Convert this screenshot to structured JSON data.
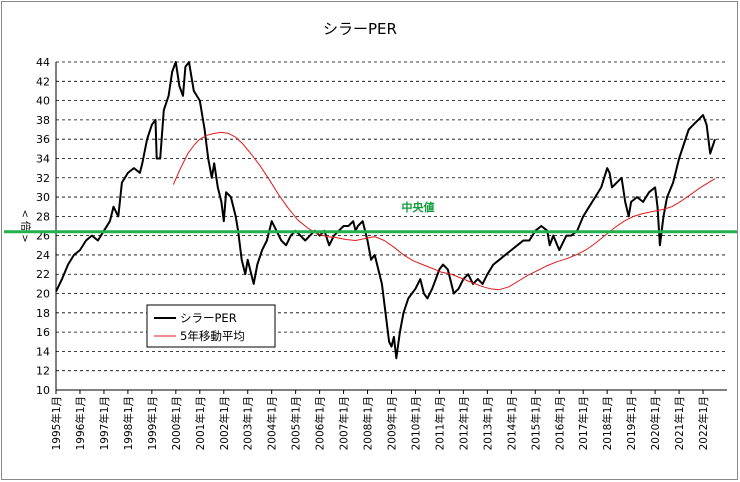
{
  "chart_data": {
    "type": "line",
    "title": "シラーPER",
    "ylabel": "< 倍 >",
    "xlabel": "",
    "ylim": [
      10,
      44
    ],
    "yticks": [
      10,
      12,
      14,
      16,
      18,
      20,
      22,
      24,
      26,
      28,
      30,
      32,
      34,
      36,
      38,
      40,
      42,
      44
    ],
    "x_tick_labels": [
      "1995年1月",
      "1996年1月",
      "1997年1月",
      "1998年1月",
      "1999年1月",
      "2000年1月",
      "2001年1月",
      "2002年1月",
      "2003年1月",
      "2004年1月",
      "2005年1月",
      "2006年1月",
      "2007年1月",
      "2008年1月",
      "2009年1月",
      "2010年1月",
      "2011年1月",
      "2012年1月",
      "2013年1月",
      "2014年1月",
      "2015年1月",
      "2016年1月",
      "2017年1月",
      "2018年1月",
      "2019年1月",
      "2020年1月",
      "2021年1月",
      "2022年1月"
    ],
    "xlim": [
      1995.0,
      2023.0
    ],
    "grid": true,
    "legend": "bottom-left",
    "series": [
      {
        "name": "シラーPER",
        "color": "#000000",
        "points": [
          [
            1995.0,
            20.2
          ],
          [
            1995.25,
            21.5
          ],
          [
            1995.5,
            23.0
          ],
          [
            1995.75,
            24.0
          ],
          [
            1996.0,
            24.5
          ],
          [
            1996.25,
            25.5
          ],
          [
            1996.5,
            26.0
          ],
          [
            1996.75,
            25.5
          ],
          [
            1997.0,
            26.5
          ],
          [
            1997.25,
            27.5
          ],
          [
            1997.4,
            29.0
          ],
          [
            1997.6,
            28.0
          ],
          [
            1997.75,
            31.5
          ],
          [
            1998.0,
            32.5
          ],
          [
            1998.25,
            33.0
          ],
          [
            1998.5,
            32.5
          ],
          [
            1998.6,
            33.5
          ],
          [
            1998.8,
            36.0
          ],
          [
            1999.0,
            37.5
          ],
          [
            1999.15,
            38.0
          ],
          [
            1999.2,
            34.0
          ],
          [
            1999.35,
            34.0
          ],
          [
            1999.5,
            39.0
          ],
          [
            1999.7,
            40.5
          ],
          [
            1999.85,
            43.0
          ],
          [
            2000.0,
            44.0
          ],
          [
            2000.15,
            41.5
          ],
          [
            2000.3,
            40.5
          ],
          [
            2000.4,
            43.5
          ],
          [
            2000.55,
            44.0
          ],
          [
            2000.75,
            41.0
          ],
          [
            2001.0,
            40.0
          ],
          [
            2001.2,
            37.0
          ],
          [
            2001.35,
            34.0
          ],
          [
            2001.5,
            32.0
          ],
          [
            2001.6,
            33.5
          ],
          [
            2001.75,
            31.0
          ],
          [
            2001.9,
            29.5
          ],
          [
            2002.0,
            27.5
          ],
          [
            2002.1,
            30.5
          ],
          [
            2002.3,
            30.0
          ],
          [
            2002.5,
            28.0
          ],
          [
            2002.6,
            26.5
          ],
          [
            2002.75,
            23.5
          ],
          [
            2002.9,
            22.0
          ],
          [
            2003.0,
            23.5
          ],
          [
            2003.15,
            22.0
          ],
          [
            2003.25,
            21.0
          ],
          [
            2003.4,
            23.0
          ],
          [
            2003.6,
            24.5
          ],
          [
            2003.8,
            25.5
          ],
          [
            2004.0,
            27.5
          ],
          [
            2004.2,
            26.5
          ],
          [
            2004.4,
            25.5
          ],
          [
            2004.6,
            25.0
          ],
          [
            2004.8,
            26.0
          ],
          [
            2005.0,
            26.5
          ],
          [
            2005.2,
            26.0
          ],
          [
            2005.4,
            25.5
          ],
          [
            2005.6,
            26.0
          ],
          [
            2005.8,
            26.5
          ],
          [
            2006.0,
            26.0
          ],
          [
            2006.2,
            26.5
          ],
          [
            2006.4,
            25.0
          ],
          [
            2006.6,
            26.0
          ],
          [
            2006.8,
            26.5
          ],
          [
            2007.0,
            27.0
          ],
          [
            2007.2,
            27.0
          ],
          [
            2007.4,
            27.5
          ],
          [
            2007.5,
            26.5
          ],
          [
            2007.6,
            27.0
          ],
          [
            2007.8,
            27.5
          ],
          [
            2008.0,
            25.5
          ],
          [
            2008.15,
            23.5
          ],
          [
            2008.3,
            24.0
          ],
          [
            2008.45,
            22.5
          ],
          [
            2008.6,
            21.0
          ],
          [
            2008.75,
            18.0
          ],
          [
            2008.9,
            15.0
          ],
          [
            2009.0,
            14.5
          ],
          [
            2009.1,
            15.5
          ],
          [
            2009.2,
            13.3
          ],
          [
            2009.35,
            16.0
          ],
          [
            2009.5,
            18.0
          ],
          [
            2009.7,
            19.5
          ],
          [
            2010.0,
            20.5
          ],
          [
            2010.2,
            21.5
          ],
          [
            2010.35,
            20.0
          ],
          [
            2010.5,
            19.5
          ],
          [
            2010.7,
            20.5
          ],
          [
            2011.0,
            22.5
          ],
          [
            2011.15,
            23.0
          ],
          [
            2011.35,
            22.5
          ],
          [
            2011.6,
            20.0
          ],
          [
            2011.8,
            20.5
          ],
          [
            2012.0,
            21.5
          ],
          [
            2012.2,
            22.0
          ],
          [
            2012.4,
            21.0
          ],
          [
            2012.6,
            21.5
          ],
          [
            2012.8,
            21.0
          ],
          [
            2013.0,
            22.0
          ],
          [
            2013.25,
            23.0
          ],
          [
            2013.5,
            23.5
          ],
          [
            2013.75,
            24.0
          ],
          [
            2014.0,
            24.5
          ],
          [
            2014.25,
            25.0
          ],
          [
            2014.5,
            25.5
          ],
          [
            2014.75,
            25.5
          ],
          [
            2015.0,
            26.5
          ],
          [
            2015.25,
            27.0
          ],
          [
            2015.5,
            26.5
          ],
          [
            2015.6,
            25.0
          ],
          [
            2015.75,
            26.0
          ],
          [
            2016.0,
            24.5
          ],
          [
            2016.1,
            25.0
          ],
          [
            2016.3,
            26.0
          ],
          [
            2016.5,
            26.0
          ],
          [
            2016.75,
            26.5
          ],
          [
            2017.0,
            28.0
          ],
          [
            2017.25,
            29.0
          ],
          [
            2017.5,
            30.0
          ],
          [
            2017.75,
            31.0
          ],
          [
            2018.0,
            33.0
          ],
          [
            2018.1,
            32.5
          ],
          [
            2018.2,
            31.0
          ],
          [
            2018.4,
            31.5
          ],
          [
            2018.6,
            32.0
          ],
          [
            2018.75,
            29.5
          ],
          [
            2018.9,
            28.0
          ],
          [
            2019.0,
            29.5
          ],
          [
            2019.25,
            30.0
          ],
          [
            2019.5,
            29.5
          ],
          [
            2019.75,
            30.5
          ],
          [
            2020.0,
            31.0
          ],
          [
            2020.1,
            29.0
          ],
          [
            2020.2,
            25.0
          ],
          [
            2020.35,
            28.0
          ],
          [
            2020.5,
            30.0
          ],
          [
            2020.75,
            31.5
          ],
          [
            2021.0,
            34.0
          ],
          [
            2021.2,
            35.5
          ],
          [
            2021.4,
            37.0
          ],
          [
            2021.6,
            37.5
          ],
          [
            2021.8,
            38.0
          ],
          [
            2022.0,
            38.5
          ],
          [
            2022.15,
            37.5
          ],
          [
            2022.3,
            34.5
          ],
          [
            2022.5,
            36.0
          ]
        ]
      },
      {
        "name": "5年移動平均",
        "color": "#e31a1a",
        "points": [
          [
            1999.9,
            31.3
          ],
          [
            2000.2,
            33.0
          ],
          [
            2000.5,
            34.5
          ],
          [
            2000.8,
            35.5
          ],
          [
            2001.0,
            36.0
          ],
          [
            2001.3,
            36.4
          ],
          [
            2001.6,
            36.6
          ],
          [
            2001.9,
            36.7
          ],
          [
            2002.2,
            36.6
          ],
          [
            2002.5,
            36.2
          ],
          [
            2002.8,
            35.5
          ],
          [
            2003.1,
            34.6
          ],
          [
            2003.5,
            33.3
          ],
          [
            2003.9,
            31.8
          ],
          [
            2004.3,
            30.2
          ],
          [
            2004.7,
            28.8
          ],
          [
            2005.1,
            27.6
          ],
          [
            2005.5,
            26.8
          ],
          [
            2005.9,
            26.2
          ],
          [
            2006.3,
            25.9
          ],
          [
            2006.7,
            25.8
          ],
          [
            2007.1,
            25.6
          ],
          [
            2007.5,
            25.5
          ],
          [
            2007.9,
            25.7
          ],
          [
            2008.3,
            25.9
          ],
          [
            2008.7,
            25.5
          ],
          [
            2009.1,
            24.8
          ],
          [
            2009.5,
            24.0
          ],
          [
            2009.9,
            23.4
          ],
          [
            2010.3,
            23.0
          ],
          [
            2010.7,
            22.6
          ],
          [
            2011.1,
            22.2
          ],
          [
            2011.5,
            22.0
          ],
          [
            2011.9,
            21.6
          ],
          [
            2012.3,
            21.2
          ],
          [
            2012.7,
            20.8
          ],
          [
            2013.1,
            20.5
          ],
          [
            2013.5,
            20.4
          ],
          [
            2013.9,
            20.7
          ],
          [
            2014.3,
            21.3
          ],
          [
            2014.7,
            21.9
          ],
          [
            2015.1,
            22.4
          ],
          [
            2015.5,
            22.9
          ],
          [
            2015.9,
            23.3
          ],
          [
            2016.3,
            23.6
          ],
          [
            2016.7,
            24.0
          ],
          [
            2017.1,
            24.5
          ],
          [
            2017.5,
            25.2
          ],
          [
            2017.9,
            26.0
          ],
          [
            2018.3,
            26.8
          ],
          [
            2018.7,
            27.5
          ],
          [
            2019.1,
            28.0
          ],
          [
            2019.5,
            28.3
          ],
          [
            2019.9,
            28.5
          ],
          [
            2020.3,
            28.7
          ],
          [
            2020.7,
            29.0
          ],
          [
            2021.1,
            29.6
          ],
          [
            2021.5,
            30.3
          ],
          [
            2021.9,
            31.0
          ],
          [
            2022.3,
            31.6
          ],
          [
            2022.5,
            31.9
          ]
        ]
      }
    ],
    "reference_line": {
      "label": "中央値",
      "value": 26.4,
      "color": "#22b14c"
    }
  }
}
